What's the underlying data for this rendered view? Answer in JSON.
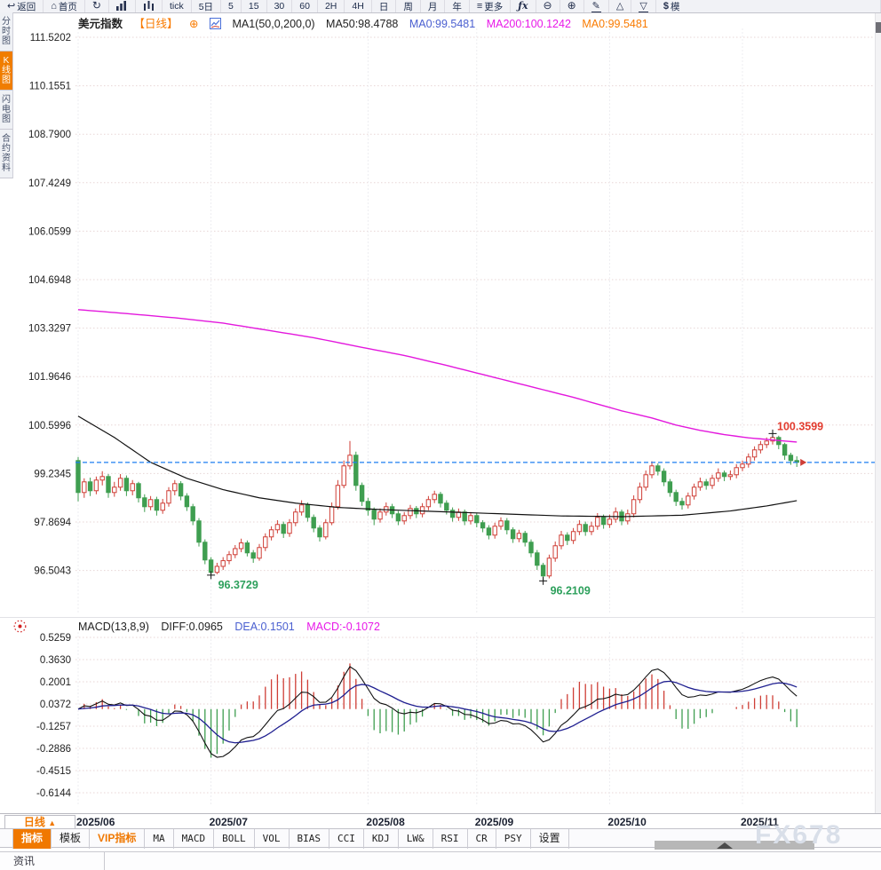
{
  "topbar": {
    "items": [
      {
        "name": "back",
        "label": "返回",
        "icon": "back-icon"
      },
      {
        "name": "home",
        "label": "首页",
        "icon": "home-icon"
      },
      {
        "name": "refresh",
        "label": "",
        "icon": "refresh-icon"
      },
      {
        "name": "bar-chart",
        "label": "",
        "icon": "bar-chart-icon"
      },
      {
        "name": "volume",
        "label": "",
        "icon": "volume-bars-icon"
      },
      {
        "name": "tick",
        "label": "tick"
      },
      {
        "name": "range-5d",
        "label": "5日"
      },
      {
        "name": "interval-5",
        "label": "5"
      },
      {
        "name": "interval-15",
        "label": "15"
      },
      {
        "name": "interval-30",
        "label": "30"
      },
      {
        "name": "interval-60",
        "label": "60"
      },
      {
        "name": "interval-2h",
        "label": "2H"
      },
      {
        "name": "interval-4h",
        "label": "4H"
      },
      {
        "name": "interval-day",
        "label": "日"
      },
      {
        "name": "interval-week",
        "label": "周"
      },
      {
        "name": "interval-month",
        "label": "月"
      },
      {
        "name": "interval-year",
        "label": "年"
      },
      {
        "name": "more",
        "label": "更多",
        "icon": "menu-icon"
      },
      {
        "name": "formula",
        "label": "fx",
        "icon": "fx-icon"
      },
      {
        "name": "zoom-out",
        "label": "",
        "icon": "zoom-out-icon"
      },
      {
        "name": "zoom-in",
        "label": "",
        "icon": "zoom-in-icon"
      },
      {
        "name": "draw",
        "label": "",
        "icon": "pencil-icon"
      },
      {
        "name": "triangle-up",
        "label": "",
        "icon": "triangle-up-icon"
      },
      {
        "name": "triangle-down",
        "label": "",
        "icon": "triangle-down-icon"
      },
      {
        "name": "sim-trade",
        "label": "$模",
        "icon": "dollar-icon"
      }
    ]
  },
  "sidebar": {
    "tabs": [
      {
        "name": "time-share-chart",
        "label": "分时图",
        "active": false
      },
      {
        "name": "kline-chart",
        "label": "K线图",
        "active": true
      },
      {
        "name": "lightning-chart",
        "label": "闪电图",
        "active": false
      },
      {
        "name": "contract-info",
        "label": "合约资料",
        "active": false
      }
    ]
  },
  "chart_header": {
    "symbol": "美元指数",
    "period": "【日线】",
    "plus_icon": "⊕",
    "ma_settings": "MA1(50,0,200,0)",
    "ma50": "MA50:98.4788",
    "ma0_blue": "MA0:99.5481",
    "ma200": "MA200:100.1242",
    "ma0_orange": "MA0:99.5481"
  },
  "macd_header": {
    "title": "MACD(13,8,9)",
    "diff": "DIFF:0.0965",
    "dea": "DEA:0.1501",
    "macd": "MACD:-0.1072"
  },
  "chart_data": {
    "type": "candlestick",
    "title": "美元指数 日线 (US Dollar Index Daily)",
    "y_ticks": [
      "111.5202",
      "110.1551",
      "108.7900",
      "107.4249",
      "106.0599",
      "104.6948",
      "103.3297",
      "101.9646",
      "100.5996",
      "99.2345",
      "97.8694",
      "96.5043"
    ],
    "ylim": [
      96.5043,
      111.5202
    ],
    "grid": true,
    "months": [
      {
        "label": "2025/06",
        "index": 0
      },
      {
        "label": "2025/07",
        "index": 22
      },
      {
        "label": "2025/08",
        "index": 48
      },
      {
        "label": "2025/09",
        "index": 66
      },
      {
        "label": "2025/10",
        "index": 88
      },
      {
        "label": "2025/11",
        "index": 110
      }
    ],
    "current_price": 99.5481,
    "annotations": [
      {
        "type": "high",
        "label": "100.3599",
        "value": 100.3599,
        "index": 115
      },
      {
        "type": "low",
        "label": "96.3729",
        "value": 96.3729,
        "index": 22
      },
      {
        "type": "low",
        "label": "96.2109",
        "value": 96.2109,
        "index": 77
      }
    ],
    "ma50_points": [
      [
        0,
        100.85
      ],
      [
        6,
        100.25
      ],
      [
        12,
        99.55
      ],
      [
        18,
        99.1
      ],
      [
        24,
        98.78
      ],
      [
        30,
        98.55
      ],
      [
        36,
        98.4
      ],
      [
        43,
        98.28
      ],
      [
        50,
        98.22
      ],
      [
        60,
        98.16
      ],
      [
        70,
        98.1
      ],
      [
        80,
        98.04
      ],
      [
        90,
        98.02
      ],
      [
        100,
        98.06
      ],
      [
        108,
        98.18
      ],
      [
        114,
        98.32
      ],
      [
        119,
        98.47
      ]
    ],
    "ma200_points": [
      [
        0,
        103.85
      ],
      [
        8,
        103.74
      ],
      [
        16,
        103.62
      ],
      [
        24,
        103.47
      ],
      [
        31,
        103.28
      ],
      [
        39,
        103.06
      ],
      [
        46,
        102.82
      ],
      [
        54,
        102.56
      ],
      [
        61,
        102.28
      ],
      [
        68,
        101.98
      ],
      [
        75,
        101.68
      ],
      [
        82,
        101.38
      ],
      [
        90,
        101.0
      ],
      [
        95,
        100.8
      ],
      [
        99,
        100.6
      ],
      [
        103,
        100.45
      ],
      [
        107,
        100.33
      ],
      [
        111,
        100.24
      ],
      [
        115,
        100.18
      ],
      [
        119,
        100.12
      ]
    ],
    "candles": [
      [
        99.6,
        99.7,
        98.45,
        98.7
      ],
      [
        98.7,
        99.1,
        98.55,
        99.0
      ],
      [
        99.0,
        99.12,
        98.6,
        98.75
      ],
      [
        98.75,
        99.15,
        98.65,
        99.05
      ],
      [
        99.05,
        99.3,
        98.9,
        99.15
      ],
      [
        99.15,
        99.22,
        98.55,
        98.7
      ],
      [
        98.7,
        99.0,
        98.58,
        98.85
      ],
      [
        98.85,
        99.22,
        98.75,
        99.1
      ],
      [
        99.1,
        99.18,
        98.6,
        98.75
      ],
      [
        98.75,
        99.05,
        98.62,
        98.95
      ],
      [
        98.95,
        99.0,
        98.42,
        98.55
      ],
      [
        98.55,
        98.65,
        98.15,
        98.3
      ],
      [
        98.3,
        98.6,
        98.2,
        98.5
      ],
      [
        98.5,
        98.58,
        98.05,
        98.2
      ],
      [
        98.2,
        98.52,
        98.1,
        98.4
      ],
      [
        98.4,
        98.85,
        98.3,
        98.75
      ],
      [
        98.75,
        99.05,
        98.62,
        98.95
      ],
      [
        98.95,
        99.02,
        98.48,
        98.6
      ],
      [
        98.6,
        98.68,
        98.18,
        98.3
      ],
      [
        98.3,
        98.38,
        97.78,
        97.9
      ],
      [
        97.9,
        97.98,
        97.18,
        97.3
      ],
      [
        97.3,
        97.38,
        96.68,
        96.8
      ],
      [
        96.8,
        96.88,
        96.37,
        96.45
      ],
      [
        96.45,
        96.72,
        96.4,
        96.62
      ],
      [
        96.62,
        96.88,
        96.52,
        96.78
      ],
      [
        96.78,
        97.05,
        96.68,
        96.95
      ],
      [
        96.95,
        97.22,
        96.85,
        97.12
      ],
      [
        97.12,
        97.4,
        97.02,
        97.28
      ],
      [
        97.28,
        97.35,
        96.9,
        97.0
      ],
      [
        97.0,
        97.08,
        96.72,
        96.85
      ],
      [
        96.85,
        97.25,
        96.78,
        97.15
      ],
      [
        97.15,
        97.55,
        97.05,
        97.45
      ],
      [
        97.45,
        97.75,
        97.35,
        97.65
      ],
      [
        97.65,
        97.92,
        97.55,
        97.8
      ],
      [
        97.8,
        97.88,
        97.42,
        97.55
      ],
      [
        97.55,
        97.95,
        97.45,
        97.85
      ],
      [
        97.85,
        98.25,
        97.75,
        98.15
      ],
      [
        98.15,
        98.48,
        98.05,
        98.35
      ],
      [
        98.35,
        98.42,
        97.88,
        98.0
      ],
      [
        98.0,
        98.08,
        97.58,
        97.7
      ],
      [
        97.7,
        97.78,
        97.32,
        97.45
      ],
      [
        97.45,
        97.95,
        97.38,
        97.85
      ],
      [
        97.85,
        98.42,
        97.78,
        98.3
      ],
      [
        98.3,
        99.05,
        98.22,
        98.9
      ],
      [
        98.9,
        99.6,
        98.82,
        99.45
      ],
      [
        99.45,
        100.15,
        99.35,
        99.75
      ],
      [
        99.75,
        99.85,
        98.75,
        98.9
      ],
      [
        98.9,
        98.98,
        98.32,
        98.45
      ],
      [
        98.45,
        98.55,
        98.05,
        98.2
      ],
      [
        98.2,
        98.28,
        97.78,
        97.95
      ],
      [
        97.95,
        98.25,
        97.85,
        98.15
      ],
      [
        98.15,
        98.42,
        98.05,
        98.3
      ],
      [
        98.3,
        98.38,
        97.98,
        98.1
      ],
      [
        98.1,
        98.18,
        97.78,
        97.9
      ],
      [
        97.9,
        98.15,
        97.8,
        98.05
      ],
      [
        98.05,
        98.35,
        97.95,
        98.25
      ],
      [
        98.25,
        98.32,
        97.98,
        98.1
      ],
      [
        98.1,
        98.4,
        98.0,
        98.3
      ],
      [
        98.3,
        98.6,
        98.2,
        98.5
      ],
      [
        98.5,
        98.75,
        98.4,
        98.65
      ],
      [
        98.65,
        98.72,
        98.28,
        98.4
      ],
      [
        98.4,
        98.48,
        98.08,
        98.2
      ],
      [
        98.2,
        98.28,
        97.88,
        98.0
      ],
      [
        98.0,
        98.25,
        97.9,
        98.15
      ],
      [
        98.15,
        98.22,
        97.78,
        97.9
      ],
      [
        97.9,
        98.15,
        97.8,
        98.05
      ],
      [
        98.05,
        98.12,
        97.72,
        97.85
      ],
      [
        97.85,
        97.92,
        97.58,
        97.7
      ],
      [
        97.7,
        97.78,
        97.38,
        97.5
      ],
      [
        97.5,
        97.85,
        97.4,
        97.75
      ],
      [
        97.75,
        98.0,
        97.65,
        97.9
      ],
      [
        97.9,
        97.98,
        97.52,
        97.65
      ],
      [
        97.65,
        97.72,
        97.28,
        97.4
      ],
      [
        97.4,
        97.65,
        97.3,
        97.55
      ],
      [
        97.55,
        97.62,
        97.18,
        97.3
      ],
      [
        97.3,
        97.38,
        96.88,
        97.0
      ],
      [
        97.0,
        97.08,
        96.52,
        96.65
      ],
      [
        96.65,
        96.72,
        96.21,
        96.35
      ],
      [
        96.35,
        96.95,
        96.28,
        96.85
      ],
      [
        96.85,
        97.32,
        96.75,
        97.2
      ],
      [
        97.2,
        97.62,
        97.1,
        97.5
      ],
      [
        97.5,
        97.58,
        97.22,
        97.35
      ],
      [
        97.35,
        97.7,
        97.25,
        97.6
      ],
      [
        97.6,
        97.92,
        97.5,
        97.8
      ],
      [
        97.8,
        97.88,
        97.48,
        97.6
      ],
      [
        97.6,
        97.88,
        97.5,
        97.75
      ],
      [
        97.75,
        98.12,
        97.65,
        98.0
      ],
      [
        98.0,
        98.08,
        97.68,
        97.8
      ],
      [
        97.8,
        98.08,
        97.7,
        97.95
      ],
      [
        97.95,
        98.28,
        97.85,
        98.15
      ],
      [
        98.15,
        98.22,
        97.78,
        97.9
      ],
      [
        97.9,
        98.22,
        97.8,
        98.1
      ],
      [
        98.1,
        98.62,
        98.0,
        98.5
      ],
      [
        98.5,
        98.98,
        98.4,
        98.85
      ],
      [
        98.85,
        99.32,
        98.75,
        99.2
      ],
      [
        99.2,
        99.58,
        99.1,
        99.45
      ],
      [
        99.45,
        99.52,
        99.18,
        99.3
      ],
      [
        99.3,
        99.38,
        98.88,
        99.0
      ],
      [
        99.0,
        99.08,
        98.58,
        98.7
      ],
      [
        98.7,
        98.78,
        98.32,
        98.45
      ],
      [
        98.45,
        98.55,
        98.22,
        98.35
      ],
      [
        98.35,
        98.7,
        98.25,
        98.6
      ],
      [
        98.6,
        98.95,
        98.5,
        98.85
      ],
      [
        98.85,
        99.12,
        98.75,
        99.0
      ],
      [
        99.0,
        99.08,
        98.78,
        98.9
      ],
      [
        98.9,
        99.2,
        98.8,
        99.1
      ],
      [
        99.1,
        99.38,
        99.0,
        99.25
      ],
      [
        99.25,
        99.32,
        99.02,
        99.15
      ],
      [
        99.15,
        99.32,
        99.05,
        99.2
      ],
      [
        99.2,
        99.5,
        99.1,
        99.4
      ],
      [
        99.4,
        99.6,
        99.3,
        99.5
      ],
      [
        99.5,
        99.8,
        99.4,
        99.7
      ],
      [
        99.7,
        100.0,
        99.6,
        99.9
      ],
      [
        99.9,
        100.15,
        99.8,
        100.05
      ],
      [
        100.05,
        100.25,
        99.95,
        100.15
      ],
      [
        100.15,
        100.36,
        100.05,
        100.25
      ],
      [
        100.25,
        100.3,
        99.92,
        100.05
      ],
      [
        100.05,
        100.1,
        99.62,
        99.75
      ],
      [
        99.75,
        99.82,
        99.48,
        99.6
      ],
      [
        99.6,
        99.72,
        99.42,
        99.55
      ]
    ]
  },
  "macd_chart": {
    "type": "macd-histogram",
    "params": "(13,8,9)",
    "y_ticks": [
      "0.5259",
      "0.3630",
      "0.2001",
      "0.0372",
      "-0.1257",
      "-0.2886",
      "-0.4515",
      "-0.6144"
    ],
    "diff": 0.0965,
    "dea": 0.1501,
    "macd": -0.1072
  },
  "bottom": {
    "period_button": "日线",
    "period_arrow": "▲",
    "indicators": [
      {
        "label": "指标",
        "active": true
      },
      {
        "label": "模板"
      },
      {
        "label": "VIP指标",
        "vip": true
      },
      {
        "label": "MA",
        "mono": true
      },
      {
        "label": "MACD",
        "mono": true
      },
      {
        "label": "BOLL",
        "mono": true
      },
      {
        "label": "VOL",
        "mono": true
      },
      {
        "label": "BIAS",
        "mono": true
      },
      {
        "label": "CCI",
        "mono": true
      },
      {
        "label": "KDJ",
        "mono": true
      },
      {
        "label": "LW&",
        "mono": true
      },
      {
        "label": "RSI",
        "mono": true
      },
      {
        "label": "CR",
        "mono": true
      },
      {
        "label": "PSY",
        "mono": true
      },
      {
        "label": "设置"
      }
    ],
    "watermark": "FX678"
  },
  "statusbar": {
    "news_tab": "资讯"
  },
  "colors": {
    "up": "#cf3e36",
    "down": "#3f9e50",
    "ma50_line": "#111111",
    "ma200_line": "#e318dd",
    "dea_line": "#1f1f90",
    "diff_line": "#111111",
    "price_line": "#1e7ef0",
    "accent_orange": "#f07800",
    "label_red": "#e23b2e",
    "label_green": "#2da05c",
    "blue_text": "#4a5fd0",
    "magenta_text": "#e818e8",
    "grid": "#e8d6d6"
  }
}
